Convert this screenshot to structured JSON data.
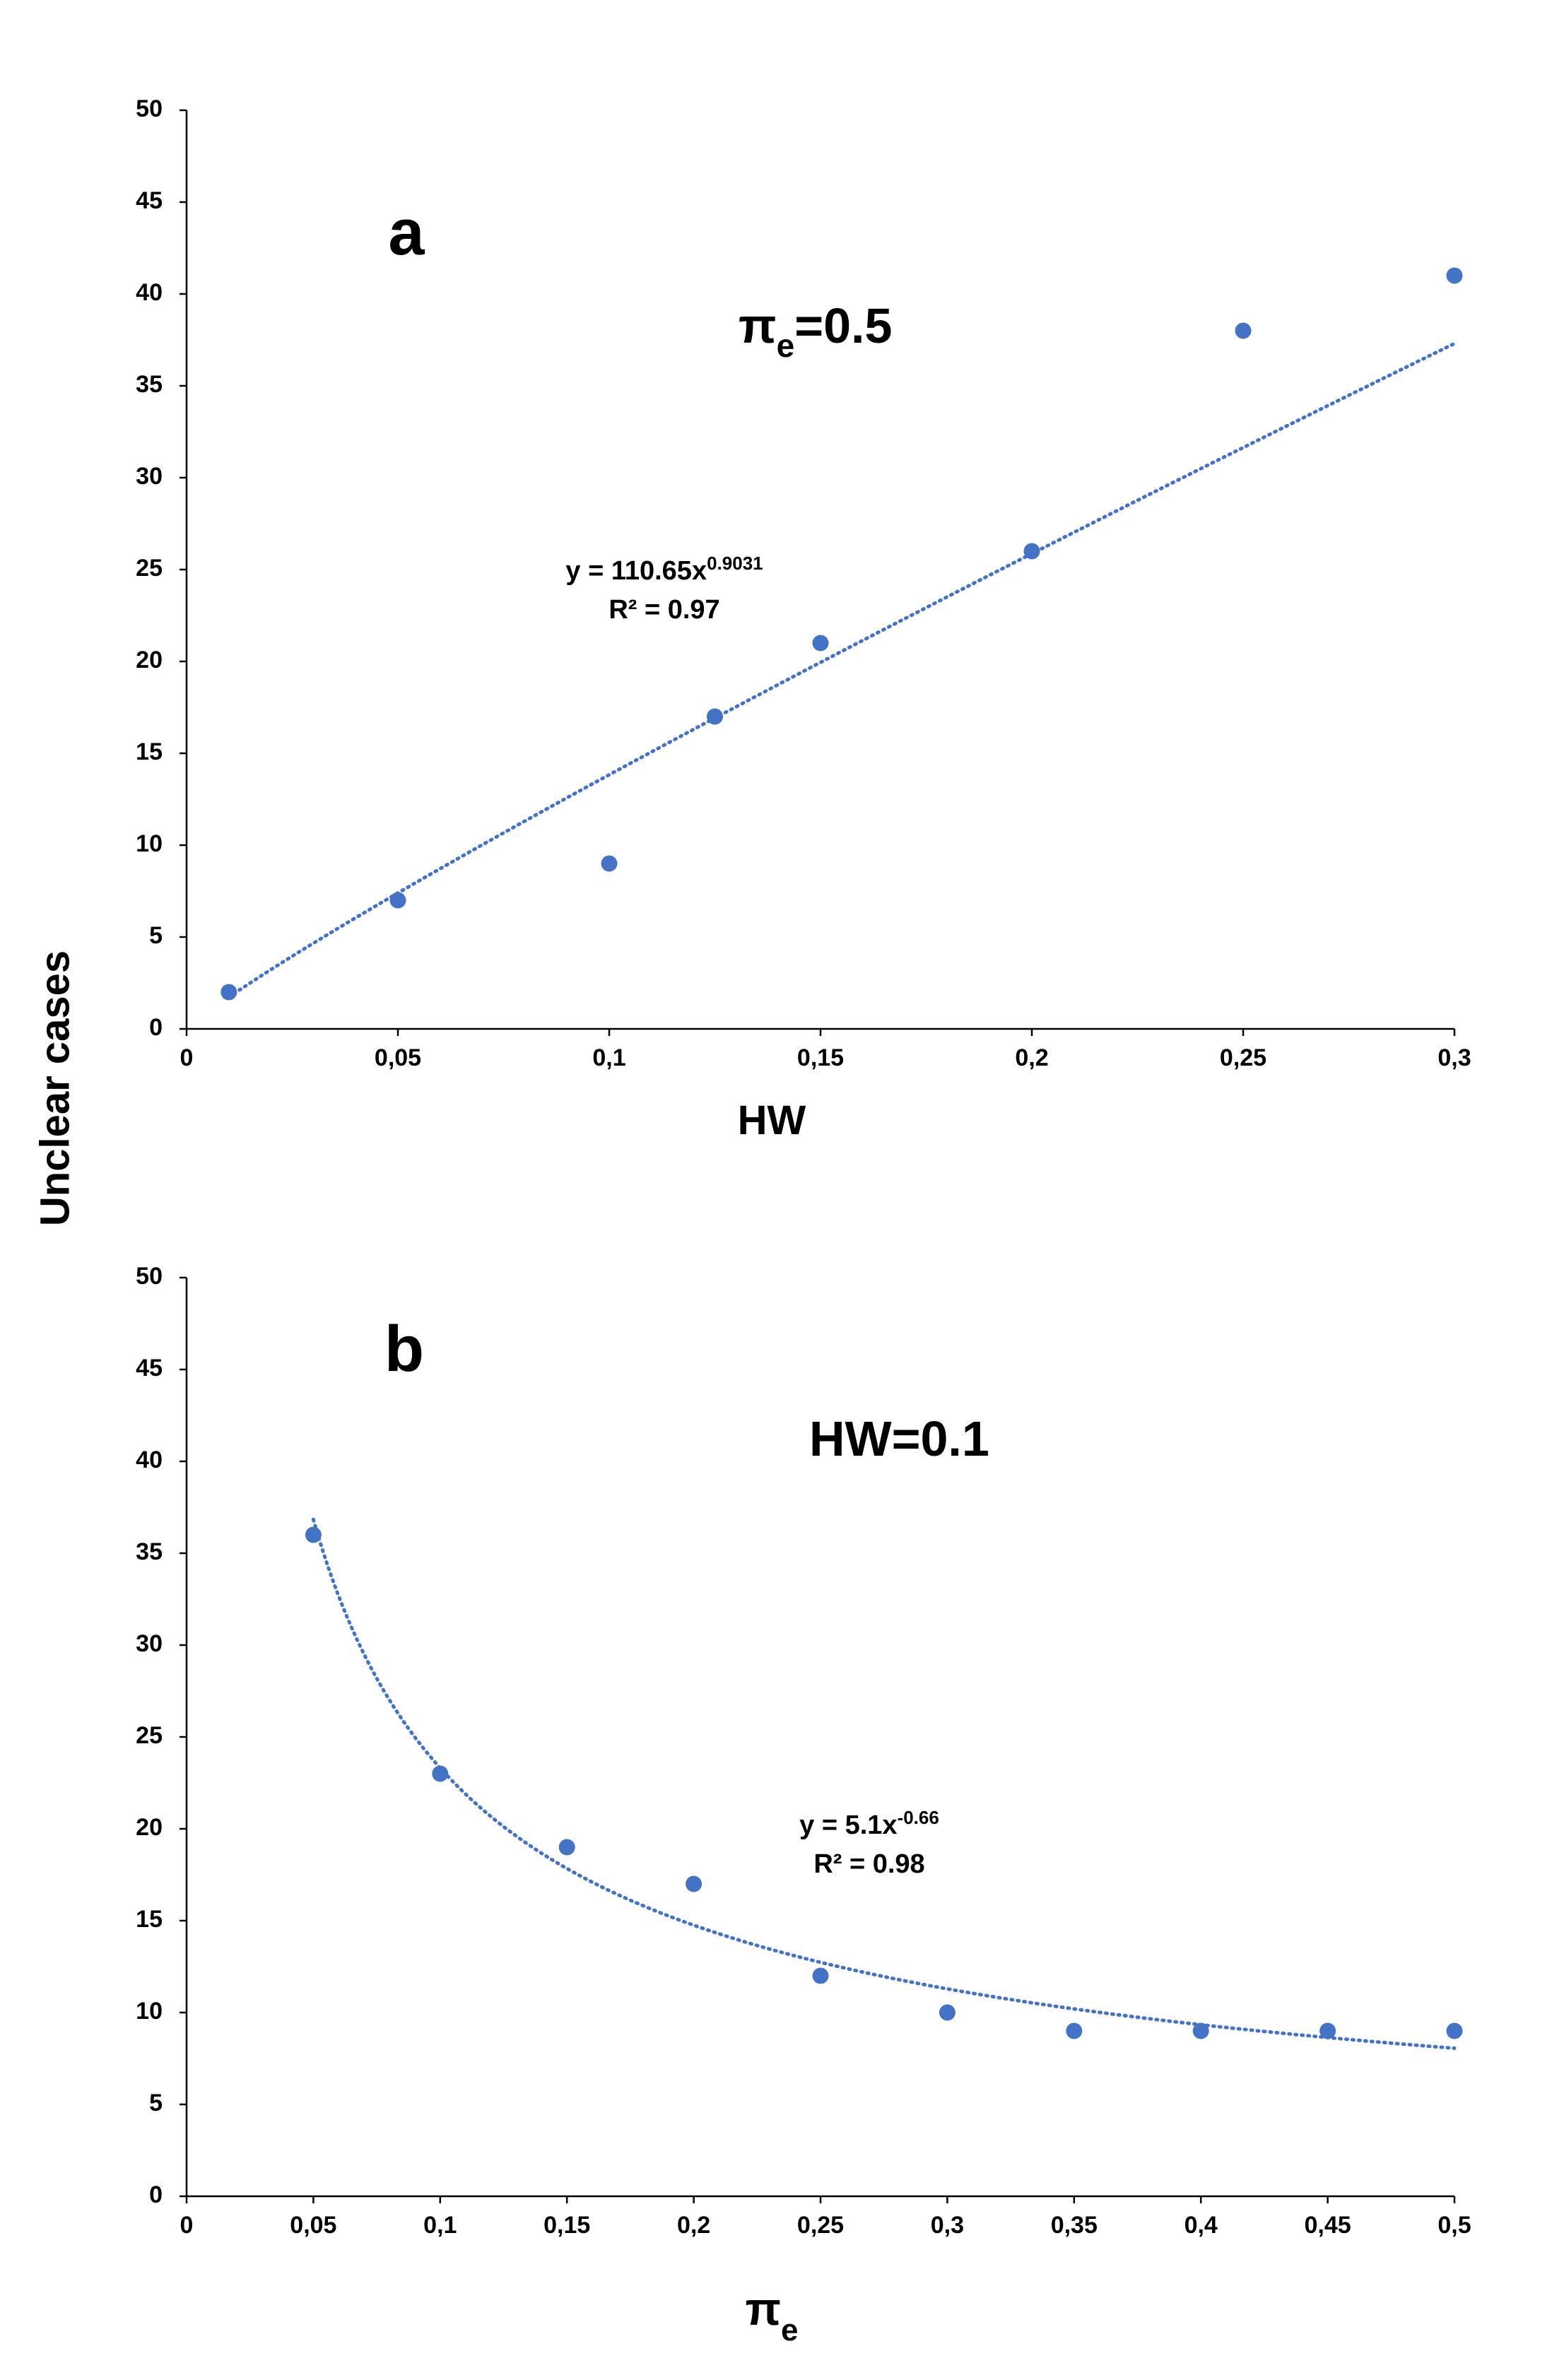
{
  "figure": {
    "ylabel": "Unclear cases"
  },
  "chart_data": [
    {
      "type": "scatter",
      "panel": "a",
      "panel_letter": "a",
      "condition": {
        "main": "π",
        "sub": "e",
        "rest": "=0.5"
      },
      "xlabel": {
        "main": "HW",
        "sub": ""
      },
      "ylabel": "Unclear cases",
      "xlim": [
        0,
        0.3
      ],
      "ylim": [
        0,
        50
      ],
      "x_ticks": [
        "0",
        "0,05",
        "0,1",
        "0,15",
        "0,2",
        "0,25",
        "0,3"
      ],
      "y_ticks": [
        "0",
        "5",
        "10",
        "15",
        "20",
        "25",
        "30",
        "35",
        "40",
        "45",
        "50"
      ],
      "grid": false,
      "legend": "none",
      "marker_color": "#4472c4",
      "trend_color": "#4472c4",
      "points": [
        {
          "x": 0.01,
          "y": 2
        },
        {
          "x": 0.05,
          "y": 7
        },
        {
          "x": 0.1,
          "y": 9
        },
        {
          "x": 0.125,
          "y": 17
        },
        {
          "x": 0.15,
          "y": 21
        },
        {
          "x": 0.2,
          "y": 26
        },
        {
          "x": 0.25,
          "y": 38
        },
        {
          "x": 0.3,
          "y": 41
        }
      ],
      "trendline": {
        "type": "power",
        "a": 110.65,
        "b": 0.9031,
        "x_range": [
          0.01,
          0.3
        ]
      },
      "equation": {
        "text": "y = 110.65x",
        "exp": "0.9031",
        "r2": "R² = 0.97"
      }
    },
    {
      "type": "scatter",
      "panel": "b",
      "panel_letter": "b",
      "condition": {
        "main": "HW=0.1",
        "sub": "",
        "rest": ""
      },
      "xlabel": {
        "main": "π",
        "sub": "e"
      },
      "ylabel": "Unclear cases",
      "xlim": [
        0,
        0.5
      ],
      "ylim": [
        0,
        50
      ],
      "x_ticks": [
        "0",
        "0,05",
        "0,1",
        "0,15",
        "0,2",
        "0,25",
        "0,3",
        "0,35",
        "0,4",
        "0,45",
        "0,5"
      ],
      "y_ticks": [
        "0",
        "5",
        "10",
        "15",
        "20",
        "25",
        "30",
        "35",
        "40",
        "45",
        "50"
      ],
      "grid": false,
      "legend": "none",
      "marker_color": "#4472c4",
      "trend_color": "#4472c4",
      "points": [
        {
          "x": 0.05,
          "y": 36
        },
        {
          "x": 0.1,
          "y": 23
        },
        {
          "x": 0.15,
          "y": 19
        },
        {
          "x": 0.2,
          "y": 17
        },
        {
          "x": 0.25,
          "y": 12
        },
        {
          "x": 0.3,
          "y": 10
        },
        {
          "x": 0.35,
          "y": 9
        },
        {
          "x": 0.4,
          "y": 9
        },
        {
          "x": 0.45,
          "y": 9
        },
        {
          "x": 0.5,
          "y": 9
        }
      ],
      "trendline": {
        "type": "power",
        "a": 5.1,
        "b": -0.66,
        "x_range": [
          0.05,
          0.5
        ]
      },
      "equation": {
        "text": "y = 5.1x",
        "exp": "-0.66",
        "r2": "R² = 0.98"
      }
    }
  ]
}
